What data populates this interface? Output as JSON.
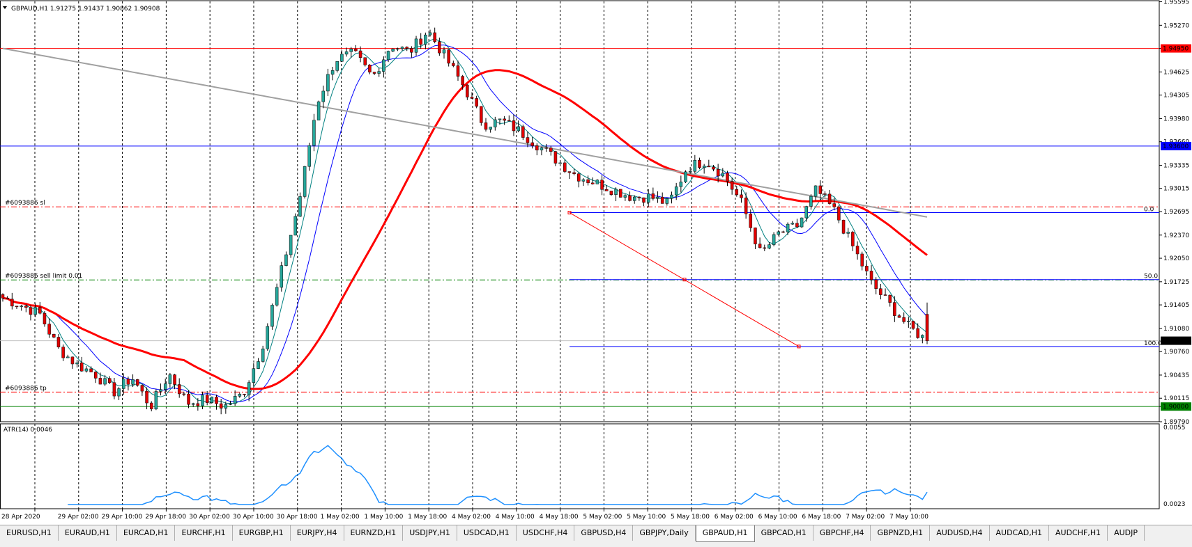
{
  "window": {
    "symbol_info": "GBPAUD,H1  1.91275 1.91437 1.90862 1.90908"
  },
  "chart_data": {
    "type": "candlestick",
    "symbol": "GBPAUD",
    "timeframe": "H1",
    "ohlc_header": {
      "open": 1.91275,
      "high": 1.91437,
      "low": 1.90862,
      "close": 1.90908
    },
    "ylim": [
      1.8979,
      1.956
    ],
    "price_ticks": [
      "1.95595",
      "1.95270",
      "1.94950",
      "1.94625",
      "1.94305",
      "1.93980",
      "1.93660",
      "1.93335",
      "1.93015",
      "1.92695",
      "1.92370",
      "1.92050",
      "1.91725",
      "1.91405",
      "1.91080",
      "1.90760",
      "1.90435",
      "1.90115",
      "1.90000",
      "1.89790"
    ],
    "time_labels": [
      "28 Apr 2020",
      "29 Apr 02:00",
      "29 Apr 10:00",
      "29 Apr 18:00",
      "30 Apr 02:00",
      "30 Apr 10:00",
      "30 Apr 18:00",
      "1 May 02:00",
      "1 May 10:00",
      "1 May 18:00",
      "4 May 02:00",
      "4 May 10:00",
      "4 May 18:00",
      "5 May 02:00",
      "5 May 10:00",
      "5 May 18:00",
      "6 May 02:00",
      "6 May 10:00",
      "6 May 18:00",
      "7 May 02:00",
      "7 May 10:00"
    ],
    "candle_count": 200,
    "candles_anchor_close": [
      1.915,
      1.914,
      1.9128,
      1.908,
      1.9058,
      1.9045,
      1.902,
      1.904,
      1.9,
      1.9045,
      1.9005,
      1.901,
      1.9,
      1.9018,
      1.908,
      1.918,
      1.928,
      1.942,
      1.948,
      1.9488,
      1.9455,
      1.95,
      1.949,
      1.952,
      1.948,
      1.944,
      1.939,
      1.9395,
      1.938,
      1.936,
      1.934,
      1.932,
      1.931,
      1.93,
      1.929,
      1.929,
      1.928,
      1.933,
      1.934,
      1.932,
      1.928,
      1.921,
      1.924,
      1.925,
      1.93,
      1.927,
      1.922,
      1.917,
      1.914,
      1.911,
      1.9091
    ],
    "horizontal_lines": [
      {
        "price": 1.9495,
        "label": "1.94950",
        "color": "#ff0000",
        "style": "solid"
      },
      {
        "price": 1.936,
        "label": "1.93600",
        "color": "#0000ff",
        "style": "solid"
      },
      {
        "price": 1.9,
        "label": "1.90000",
        "color": "#008000",
        "style": "solid"
      },
      {
        "price": 1.9091,
        "label": "1.90908",
        "color": "#000000",
        "style": "bid"
      }
    ],
    "order_lines": [
      {
        "price": 1.9276,
        "label": "#6093886 sl",
        "color": "#ff0000",
        "style": "dashdot"
      },
      {
        "price": 1.9175,
        "label": "#6093886 sell limit 0.01",
        "color": "#008000",
        "style": "dashdot"
      },
      {
        "price": 1.902,
        "label": "#6093886 tp",
        "color": "#ff0000",
        "style": "dashdot"
      }
    ],
    "fibonacci": {
      "high": 1.9268,
      "low": 1.9083,
      "levels": [
        {
          "ratio": 0.0,
          "label": "0.0"
        },
        {
          "ratio": 0.5,
          "label": "50.0"
        },
        {
          "ratio": 1.0,
          "label": "100.0"
        }
      ],
      "color": "#0000ff",
      "trend_color": "#ff0000"
    },
    "indicators": [
      {
        "name": "MA fast",
        "color": "#008080"
      },
      {
        "name": "MA mid",
        "color": "#0000ff"
      },
      {
        "name": "MA slow",
        "color": "#ff0000"
      },
      {
        "name": "MA long",
        "color": "#a0a0a0"
      }
    ],
    "atr": {
      "label": "ATR(14) 0.0046",
      "ylim": [
        0.0023,
        0.0055
      ],
      "ticks": [
        "0.0055",
        "0.0023"
      ],
      "color": "#1e90ff"
    },
    "colors": {
      "bull": "#26a69a",
      "bear": "#e00000",
      "grid": "#000000"
    }
  },
  "tabs": [
    "EURUSD,H1",
    "EURAUD,H1",
    "EURCAD,H1",
    "EURCHF,H1",
    "EURGBP,H1",
    "EURJPY,H4",
    "EURNZD,H1",
    "USDJPY,H1",
    "USDCAD,H1",
    "USDCHF,H4",
    "GBPUSD,H4",
    "GBPJPY,Daily",
    "GBPAUD,H1",
    "GBPCAD,H1",
    "GBPCHF,H4",
    "GBPNZD,H1",
    "AUDUSD,H4",
    "AUDCAD,H1",
    "AUDCHF,H1",
    "AUDJP"
  ],
  "active_tab": "GBPAUD,H1"
}
